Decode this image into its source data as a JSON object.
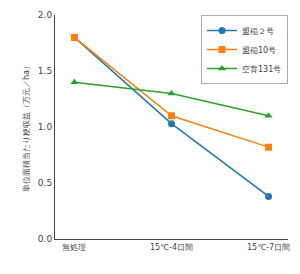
{
  "chart_data": {
    "type": "line",
    "categories": [
      "無処理",
      "15℃-4日間",
      "15℃-7日間"
    ],
    "series": [
      {
        "name": "盟稲２号",
        "values": [
          1.8,
          1.03,
          0.38
        ],
        "marker": "circle"
      },
      {
        "name": "盟稲10号",
        "values": [
          1.8,
          1.1,
          0.82
        ],
        "marker": "square"
      },
      {
        "name": "空育131号",
        "values": [
          1.4,
          1.3,
          1.1
        ],
        "marker": "triangle-up"
      }
    ],
    "ylabel": "単位面積当たり粳収益（万元／ha）",
    "ylim": [
      0.0,
      2.0
    ],
    "yticks": [
      {
        "value": 0,
        "label": "0.0"
      },
      0.5,
      {
        "value": 1,
        "label": "1.0"
      },
      1.5,
      {
        "value": 2,
        "label": "2.0"
      }
    ],
    "grid": false,
    "legend": "upper right"
  }
}
